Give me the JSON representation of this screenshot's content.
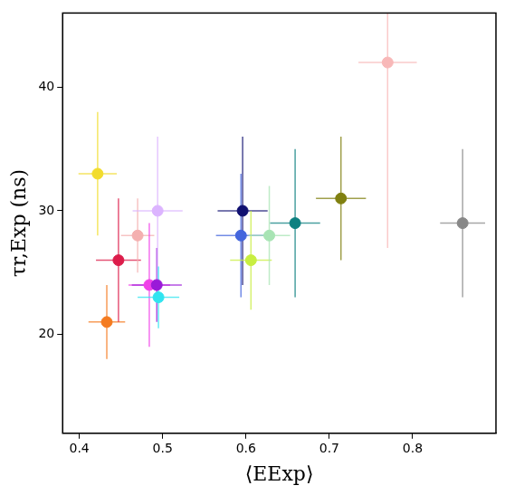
{
  "chart_data": {
    "type": "scatter",
    "xlabel": "⟨EExp⟩",
    "ylabel": "τr,Exp (ns)",
    "x": [
      0.422,
      0.433,
      0.447,
      0.47,
      0.484,
      0.493,
      0.494,
      0.495,
      0.596,
      0.594,
      0.606,
      0.628,
      0.659,
      0.714,
      0.77,
      0.86
    ],
    "values": [
      33,
      21,
      26,
      28,
      24,
      24,
      30,
      23,
      30,
      28,
      26,
      28,
      29,
      31,
      42,
      29
    ],
    "xerr": [
      0.023,
      0.022,
      0.027,
      0.02,
      0.025,
      0.03,
      0.03,
      0.025,
      0.03,
      0.03,
      0.025,
      0.025,
      0.03,
      0.03,
      0.035,
      0.027
    ],
    "yerr": [
      5,
      3,
      5,
      3,
      5,
      3,
      6,
      2.5,
      6,
      5,
      4,
      4,
      6,
      5,
      15,
      6
    ],
    "colors": [
      "#f2dc2e",
      "#f47b20",
      "#dc1c4a",
      "#f4b0b0",
      "#f040e8",
      "#9a1ad8",
      "#dcb4ff",
      "#30e4f0",
      "#101070",
      "#4466dd",
      "#c8ee40",
      "#a8e4b4",
      "#0e8080",
      "#808010",
      "#f8b8b8",
      "#888888"
    ],
    "marker": "circle",
    "xlim": [
      0.38,
      0.9
    ],
    "ylim": [
      12,
      46
    ],
    "xticks": [
      0.4,
      0.5,
      0.6,
      0.7,
      0.8
    ],
    "yticks": [
      20,
      30,
      40
    ],
    "grid": false
  }
}
